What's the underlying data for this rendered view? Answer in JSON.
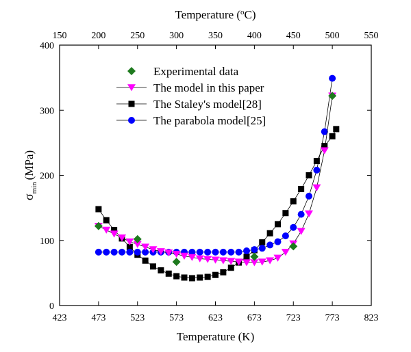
{
  "chart_data": {
    "type": "line",
    "title": "",
    "xlabel": "Temperature (K)",
    "ylabel": "σmin (MPa)",
    "ylabel_symbol": "σ",
    "ylabel_subscript": "min",
    "ylabel_unit": "(MPa)",
    "x2label": "Temperature (°C)",
    "x2label_prefix": "Temperature (",
    "x2label_degree": "o",
    "x2label_suffix": "C)",
    "xlim": [
      423,
      823
    ],
    "ylim": [
      0,
      400
    ],
    "x2lim": [
      150,
      550
    ],
    "xticks": [
      "423",
      "473",
      "523",
      "573",
      "623",
      "673",
      "723",
      "773",
      "823"
    ],
    "yticks": [
      "0",
      "100",
      "200",
      "300",
      "400"
    ],
    "x2ticks": [
      "150",
      "200",
      "250",
      "300",
      "350",
      "400",
      "450",
      "500",
      "550"
    ],
    "grid": false,
    "legend_position": "top-center",
    "series": [
      {
        "name": "Experimental data",
        "marker": "diamond",
        "line": false,
        "color": "#1e7a1e",
        "x": [
          473,
          523,
          573,
          673,
          723,
          773
        ],
        "y": [
          122,
          102,
          67,
          75,
          91,
          322
        ]
      },
      {
        "name": "The model in this paper",
        "marker": "triangle-down",
        "line": true,
        "color": "#ff00ff",
        "x": [
          473,
          483,
          493,
          503,
          513,
          523,
          533,
          543,
          553,
          563,
          573,
          583,
          593,
          603,
          613,
          623,
          633,
          643,
          653,
          663,
          673,
          683,
          693,
          703,
          713,
          723,
          733,
          743,
          753,
          763,
          773
        ],
        "y": [
          122,
          116,
          110,
          104,
          98,
          94,
          90,
          86,
          83,
          81,
          79,
          76,
          74,
          72,
          71,
          70,
          69,
          68,
          67,
          66,
          66,
          67,
          69,
          73,
          82,
          95,
          114,
          141,
          181,
          238,
          322
        ]
      },
      {
        "name": "The Staley's model[28]",
        "marker": "square",
        "line": true,
        "color": "#000000",
        "x": [
          473,
          483,
          493,
          503,
          513,
          523,
          533,
          543,
          553,
          563,
          573,
          583,
          593,
          603,
          613,
          623,
          633,
          643,
          653,
          663,
          673,
          683,
          693,
          703,
          713,
          723,
          733,
          743,
          753,
          763,
          773,
          778
        ],
        "y": [
          148,
          131,
          116,
          103,
          90,
          78,
          69,
          60,
          54,
          49,
          45,
          43,
          42,
          43,
          44,
          47,
          51,
          58,
          66,
          75,
          85,
          97,
          111,
          125,
          142,
          160,
          179,
          200,
          222,
          245,
          260,
          271
        ]
      },
      {
        "name": "The parabola model[25]",
        "marker": "circle",
        "line": true,
        "color": "#0000ff",
        "x": [
          473,
          483,
          493,
          503,
          513,
          523,
          533,
          543,
          553,
          563,
          573,
          583,
          593,
          603,
          613,
          623,
          633,
          643,
          653,
          663,
          673,
          683,
          693,
          703,
          713,
          723,
          733,
          743,
          753,
          763,
          773
        ],
        "y": [
          82,
          82,
          82,
          82,
          82,
          82,
          82,
          82,
          82,
          82,
          82,
          82,
          82,
          82,
          82,
          82,
          82,
          82,
          82,
          84,
          86,
          88,
          93,
          98,
          107,
          120,
          140,
          168,
          208,
          267,
          349
        ]
      }
    ]
  }
}
